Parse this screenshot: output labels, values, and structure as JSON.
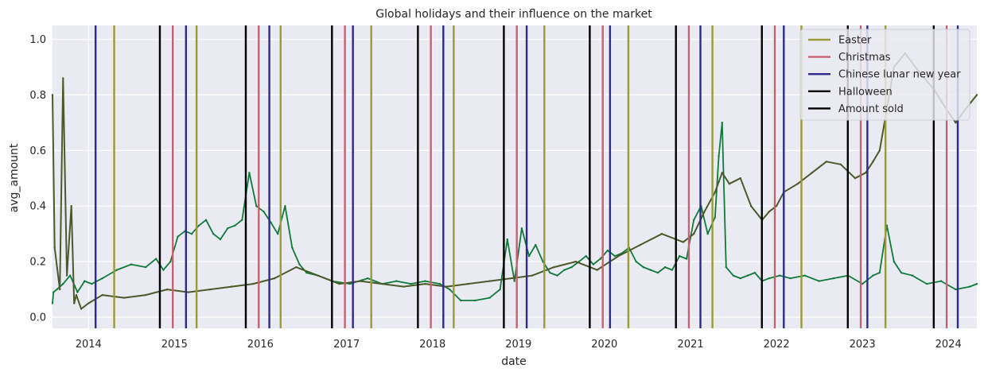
{
  "chart_data": {
    "type": "line",
    "title": "Global holidays and their influence on the market",
    "xlabel": "date",
    "ylabel": "avg_amount",
    "xlim": [
      "2013-08-01",
      "2024-05-01"
    ],
    "ylim": [
      -0.04,
      1.05
    ],
    "x_ticks": [
      "2014",
      "2015",
      "2016",
      "2017",
      "2018",
      "2019",
      "2020",
      "2021",
      "2022",
      "2023",
      "2024"
    ],
    "y_ticks": [
      "0.0",
      "0.2",
      "0.4",
      "0.6",
      "0.8",
      "1.0"
    ],
    "grid": true,
    "legend_placement": "top-right",
    "colors": {
      "background": "#eaeaf2",
      "grid": "#ffffff",
      "easter": "#9a9a38",
      "christmas": "#c9606f",
      "lunar": "#2e2a8c",
      "halloween": "#000000",
      "amount_sold_line": "#0f7a3a",
      "trend_line": "#4b5a2a"
    },
    "legend": [
      {
        "label": "Easter",
        "color": "#9a9a38"
      },
      {
        "label": "Christmas",
        "color": "#c9606f"
      },
      {
        "label": "Chinese lunar new year",
        "color": "#2e2a8c"
      },
      {
        "label": "Halloween",
        "color": "#000000"
      },
      {
        "label": "Amount sold",
        "color": "#000000"
      }
    ],
    "holidays": {
      "easter": [
        "2014-04-20",
        "2015-04-05",
        "2016-03-27",
        "2017-04-16",
        "2018-04-01",
        "2019-04-21",
        "2020-04-12",
        "2021-04-04",
        "2022-04-17",
        "2023-04-09"
      ],
      "christmas": [
        "2014-12-25",
        "2015-12-25",
        "2016-12-25",
        "2017-12-25",
        "2018-12-25",
        "2019-12-25",
        "2020-12-25",
        "2021-12-25",
        "2022-12-25",
        "2023-12-25"
      ],
      "lunar": [
        "2014-01-31",
        "2015-02-19",
        "2016-02-08",
        "2017-01-28",
        "2018-02-16",
        "2019-02-05",
        "2020-01-25",
        "2021-02-12",
        "2022-02-01",
        "2023-01-22",
        "2024-02-10"
      ],
      "halloween": [
        "2014-10-31",
        "2015-10-31",
        "2016-10-31",
        "2017-10-31",
        "2018-10-31",
        "2019-10-31",
        "2020-10-31",
        "2021-10-31",
        "2022-10-31",
        "2023-10-31"
      ]
    },
    "series": [
      {
        "key": "amount",
        "x": [
          "2013-08-01",
          "2013-08-05",
          "2013-08-20",
          "2013-09-15",
          "2013-10-15",
          "2013-11-15",
          "2013-12-15",
          "2014-01-15",
          "2014-03-01",
          "2014-05-01",
          "2014-07-01",
          "2014-09-01",
          "2014-10-15",
          "2014-11-15",
          "2014-12-15",
          "2015-01-15",
          "2015-02-15",
          "2015-03-15",
          "2015-04-15",
          "2015-05-15",
          "2015-06-15",
          "2015-07-15",
          "2015-08-15",
          "2015-09-15",
          "2015-10-15",
          "2015-11-15",
          "2015-12-15",
          "2016-01-15",
          "2016-02-15",
          "2016-03-15",
          "2016-04-15",
          "2016-05-15",
          "2016-06-15",
          "2016-07-15",
          "2016-09-01",
          "2016-11-01",
          "2017-01-15",
          "2017-04-01",
          "2017-06-01",
          "2017-08-01",
          "2017-10-01",
          "2017-12-01",
          "2018-02-01",
          "2018-03-15",
          "2018-05-01",
          "2018-07-01",
          "2018-09-01",
          "2018-10-15",
          "2018-11-15",
          "2018-12-15",
          "2019-01-15",
          "2019-02-15",
          "2019-03-15",
          "2019-04-15",
          "2019-05-15",
          "2019-06-15",
          "2019-07-15",
          "2019-08-15",
          "2019-09-15",
          "2019-10-15",
          "2019-11-15",
          "2019-12-15",
          "2020-01-15",
          "2020-02-15",
          "2020-03-15",
          "2020-04-15",
          "2020-05-15",
          "2020-06-15",
          "2020-07-15",
          "2020-08-15",
          "2020-09-15",
          "2020-10-15",
          "2020-11-15",
          "2020-12-15",
          "2021-01-15",
          "2021-02-15",
          "2021-03-15",
          "2021-04-15",
          "2021-05-01",
          "2021-05-15",
          "2021-06-01",
          "2021-07-01",
          "2021-08-01",
          "2021-09-01",
          "2021-10-01",
          "2021-11-01",
          "2021-12-01",
          "2022-01-15",
          "2022-03-01",
          "2022-05-01",
          "2022-07-01",
          "2022-09-01",
          "2022-11-01",
          "2023-01-01",
          "2023-02-15",
          "2023-03-15",
          "2023-04-15",
          "2023-05-15",
          "2023-06-15",
          "2023-08-01",
          "2023-10-01",
          "2023-12-01",
          "2024-02-01",
          "2024-04-01",
          "2024-05-01"
        ],
        "y": [
          0.05,
          0.09,
          0.1,
          0.12,
          0.15,
          0.09,
          0.13,
          0.12,
          0.14,
          0.17,
          0.19,
          0.18,
          0.21,
          0.17,
          0.2,
          0.29,
          0.31,
          0.3,
          0.33,
          0.35,
          0.3,
          0.28,
          0.32,
          0.33,
          0.35,
          0.52,
          0.4,
          0.38,
          0.34,
          0.3,
          0.4,
          0.25,
          0.19,
          0.16,
          0.15,
          0.13,
          0.12,
          0.14,
          0.12,
          0.13,
          0.12,
          0.13,
          0.12,
          0.1,
          0.06,
          0.06,
          0.07,
          0.1,
          0.28,
          0.13,
          0.32,
          0.22,
          0.26,
          0.2,
          0.16,
          0.15,
          0.17,
          0.18,
          0.2,
          0.22,
          0.19,
          0.21,
          0.24,
          0.22,
          0.23,
          0.25,
          0.2,
          0.18,
          0.17,
          0.16,
          0.18,
          0.17,
          0.22,
          0.21,
          0.35,
          0.4,
          0.3,
          0.36,
          0.58,
          0.7,
          0.18,
          0.15,
          0.14,
          0.15,
          0.16,
          0.13,
          0.14,
          0.15,
          0.14,
          0.15,
          0.13,
          0.14,
          0.15,
          0.12,
          0.15,
          0.16,
          0.33,
          0.2,
          0.16,
          0.15,
          0.12,
          0.13,
          0.1,
          0.11,
          0.12
        ]
      },
      {
        "key": "trend",
        "x": [
          "2013-08-01",
          "2013-08-10",
          "2013-09-01",
          "2013-09-15",
          "2013-10-01",
          "2013-10-20",
          "2013-11-01",
          "2013-11-10",
          "2013-12-01",
          "2014-01-01",
          "2014-03-01",
          "2014-06-01",
          "2014-09-01",
          "2014-12-01",
          "2015-03-01",
          "2015-06-01",
          "2015-09-01",
          "2015-12-01",
          "2016-03-01",
          "2016-06-01",
          "2016-09-01",
          "2016-12-01",
          "2017-03-01",
          "2017-06-01",
          "2017-09-01",
          "2017-12-01",
          "2018-03-01",
          "2018-06-01",
          "2018-09-01",
          "2018-12-01",
          "2019-03-01",
          "2019-06-01",
          "2019-09-01",
          "2019-12-01",
          "2020-03-01",
          "2020-06-01",
          "2020-09-01",
          "2020-12-01",
          "2021-01-15",
          "2021-03-01",
          "2021-04-15",
          "2021-05-15",
          "2021-06-15",
          "2021-08-01",
          "2021-09-15",
          "2021-11-01",
          "2021-12-01",
          "2022-01-01",
          "2022-02-01",
          "2022-04-01",
          "2022-06-01",
          "2022-08-01",
          "2022-10-01",
          "2022-12-01",
          "2023-01-15",
          "2023-02-15",
          "2023-03-15",
          "2023-04-15",
          "2023-05-15",
          "2023-07-01",
          "2023-09-01",
          "2023-11-01",
          "2023-12-15",
          "2024-02-01",
          "2024-03-15",
          "2024-05-01"
        ],
        "y": [
          0.8,
          0.25,
          0.1,
          0.86,
          0.15,
          0.4,
          0.05,
          0.08,
          0.03,
          0.05,
          0.08,
          0.07,
          0.08,
          0.1,
          0.09,
          0.1,
          0.11,
          0.12,
          0.14,
          0.18,
          0.15,
          0.12,
          0.13,
          0.12,
          0.11,
          0.12,
          0.11,
          0.12,
          0.13,
          0.14,
          0.15,
          0.18,
          0.2,
          0.17,
          0.22,
          0.26,
          0.3,
          0.27,
          0.3,
          0.38,
          0.45,
          0.52,
          0.48,
          0.5,
          0.4,
          0.35,
          0.38,
          0.4,
          0.45,
          0.48,
          0.52,
          0.56,
          0.55,
          0.5,
          0.52,
          0.56,
          0.6,
          0.75,
          0.9,
          0.95,
          0.88,
          0.82,
          0.76,
          0.7,
          0.75,
          0.8
        ]
      }
    ]
  }
}
